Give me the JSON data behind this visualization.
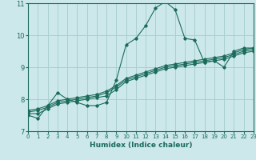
{
  "xlabel": "Humidex (Indice chaleur)",
  "bg_color": "#cce8ea",
  "grid_color": "#aacfcf",
  "line_color": "#1a6b5a",
  "x_values": [
    0,
    1,
    2,
    3,
    4,
    5,
    6,
    7,
    8,
    9,
    10,
    11,
    12,
    13,
    14,
    15,
    16,
    17,
    18,
    19,
    20,
    21,
    22,
    23
  ],
  "lines": [
    [
      7.5,
      7.4,
      7.8,
      8.2,
      8.0,
      7.9,
      7.8,
      7.8,
      7.9,
      8.6,
      9.7,
      9.9,
      10.3,
      10.85,
      11.05,
      10.8,
      9.9,
      9.85,
      9.15,
      9.2,
      9.0,
      9.5,
      9.6,
      9.6
    ],
    [
      7.55,
      7.55,
      7.7,
      7.85,
      7.9,
      7.95,
      8.0,
      8.05,
      8.1,
      8.3,
      8.55,
      8.65,
      8.75,
      8.85,
      8.95,
      9.0,
      9.05,
      9.1,
      9.15,
      9.2,
      9.25,
      9.35,
      9.45,
      9.5
    ],
    [
      7.6,
      7.65,
      7.75,
      7.9,
      7.95,
      8.0,
      8.05,
      8.1,
      8.2,
      8.38,
      8.6,
      8.7,
      8.8,
      8.9,
      9.0,
      9.05,
      9.1,
      9.15,
      9.2,
      9.25,
      9.3,
      9.4,
      9.5,
      9.55
    ],
    [
      7.65,
      7.7,
      7.8,
      7.95,
      8.0,
      8.05,
      8.1,
      8.15,
      8.25,
      8.43,
      8.65,
      8.75,
      8.85,
      8.95,
      9.05,
      9.1,
      9.15,
      9.2,
      9.25,
      9.3,
      9.35,
      9.45,
      9.55,
      9.6
    ]
  ],
  "xlim": [
    0,
    23
  ],
  "ylim": [
    7.0,
    11.0
  ],
  "yticks": [
    7,
    8,
    9,
    10,
    11
  ],
  "xticks": [
    0,
    1,
    2,
    3,
    4,
    5,
    6,
    7,
    8,
    9,
    10,
    11,
    12,
    13,
    14,
    15,
    16,
    17,
    18,
    19,
    20,
    21,
    22,
    23
  ]
}
